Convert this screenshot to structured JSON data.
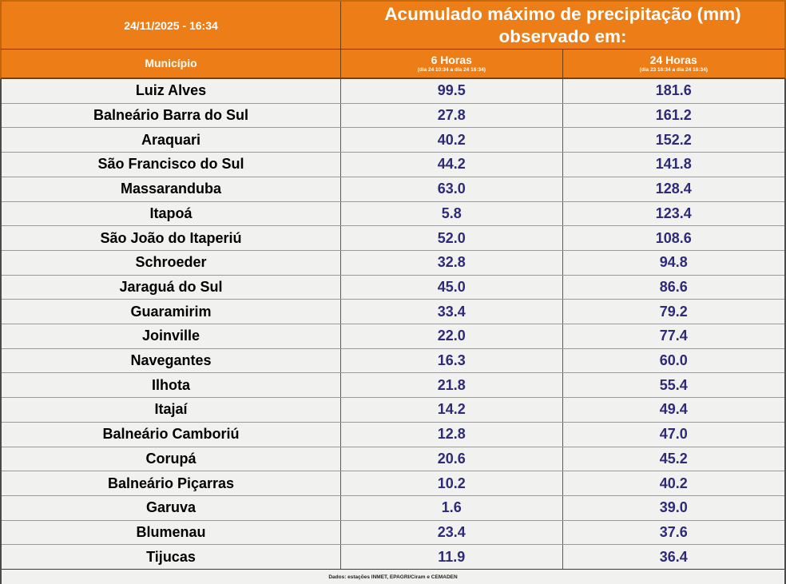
{
  "header": {
    "timestamp": "24/11/2025 - 16:34",
    "title_line1": "Acumulado máximo de precipitação (mm)",
    "title_line2": "observado em:"
  },
  "columns": {
    "municipality_label": "Município",
    "h6_label": "6 Horas",
    "h6_sub": "(dia 24 10:34 a dia 24 16:34)",
    "h24_label": "24 Horas",
    "h24_sub": "(dia 23 16:34 a dia 24 16:34)"
  },
  "footer": {
    "source": "Dados: estações INMET, EPAGRI/Ciram e CEMADEN"
  },
  "colors": {
    "header_orange": "#ec7d17",
    "value_text": "#2d2a78",
    "row_background": "#f1f1ef"
  },
  "chart_data": {
    "type": "table",
    "title": "Acumulado máximo de precipitação (mm) observado em:",
    "timestamp": "24/11/2025 - 16:34",
    "columns": [
      "Município",
      "6 Horas (dia 24 10:34 a dia 24 16:34)",
      "24 Horas (dia 23 16:34 a dia 24 16:34)"
    ],
    "rows": [
      {
        "municipio": "Luiz Alves",
        "h6": "99.5",
        "h24": "181.6"
      },
      {
        "municipio": "Balneário Barra do Sul",
        "h6": "27.8",
        "h24": "161.2"
      },
      {
        "municipio": "Araquari",
        "h6": "40.2",
        "h24": "152.2"
      },
      {
        "municipio": "São Francisco do Sul",
        "h6": "44.2",
        "h24": "141.8"
      },
      {
        "municipio": "Massaranduba",
        "h6": "63.0",
        "h24": "128.4"
      },
      {
        "municipio": "Itapoá",
        "h6": "5.8",
        "h24": "123.4"
      },
      {
        "municipio": "São João do Itaperiú",
        "h6": "52.0",
        "h24": "108.6"
      },
      {
        "municipio": "Schroeder",
        "h6": "32.8",
        "h24": "94.8"
      },
      {
        "municipio": "Jaraguá do Sul",
        "h6": "45.0",
        "h24": "86.6"
      },
      {
        "municipio": "Guaramirim",
        "h6": "33.4",
        "h24": "79.2"
      },
      {
        "municipio": "Joinville",
        "h6": "22.0",
        "h24": "77.4"
      },
      {
        "municipio": "Navegantes",
        "h6": "16.3",
        "h24": "60.0"
      },
      {
        "municipio": "Ilhota",
        "h6": "21.8",
        "h24": "55.4"
      },
      {
        "municipio": "Itajaí",
        "h6": "14.2",
        "h24": "49.4"
      },
      {
        "municipio": "Balneário Camboriú",
        "h6": "12.8",
        "h24": "47.0"
      },
      {
        "municipio": "Corupá",
        "h6": "20.6",
        "h24": "45.2"
      },
      {
        "municipio": "Balneário Piçarras",
        "h6": "10.2",
        "h24": "40.2"
      },
      {
        "municipio": "Garuva",
        "h6": "1.6",
        "h24": "39.0"
      },
      {
        "municipio": "Blumenau",
        "h6": "23.4",
        "h24": "37.6"
      },
      {
        "municipio": "Tijucas",
        "h6": "11.9",
        "h24": "36.4"
      }
    ]
  }
}
